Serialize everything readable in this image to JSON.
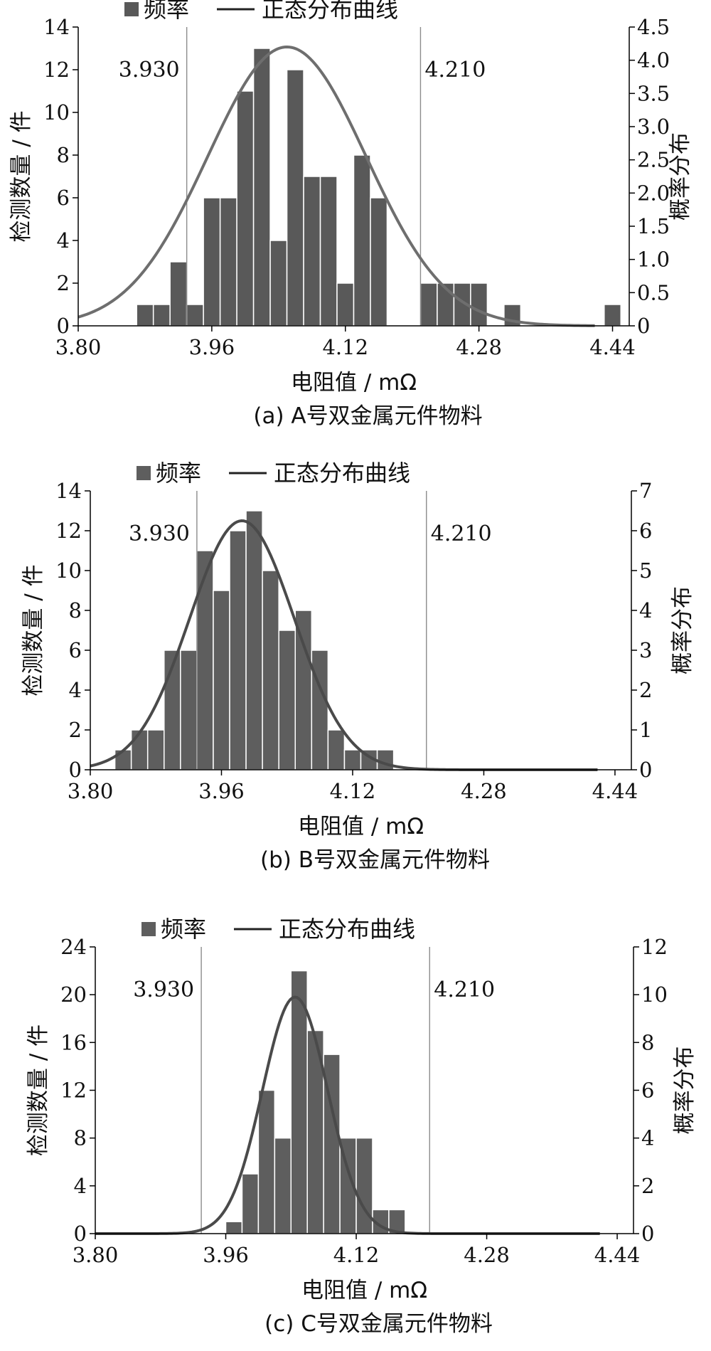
{
  "legend": {
    "bar_label": "频率",
    "line_label": "正态分布曲线"
  },
  "chart_data": [
    {
      "type": "bar",
      "caption": "(a)  A号双金属元件物料",
      "xlabel": "电阻值 / mΩ",
      "ylabel_left": "检测数量 / 件",
      "ylabel_right": "概率分布",
      "xlim": [
        3.8,
        4.46
      ],
      "x_ticks": [
        "3.80",
        "3.96",
        "4.12",
        "4.28",
        "4.44"
      ],
      "ylim_left": [
        0,
        14
      ],
      "y_ticks_left": [
        "0",
        "2",
        "4",
        "6",
        "8",
        "10",
        "12",
        "14"
      ],
      "ylim_right": [
        0,
        4.5
      ],
      "y_ticks_right": [
        "0",
        "0.5",
        "1.0",
        "1.5",
        "2.0",
        "2.5",
        "3.0",
        "3.5",
        "4.0",
        "4.5"
      ],
      "spec_lines": [
        {
          "x": 3.93,
          "label": "3.930"
        },
        {
          "x": 4.21,
          "label": "4.210"
        }
      ],
      "bin_width": 0.02,
      "bin_starts": [
        3.87,
        3.89,
        3.91,
        3.93,
        3.95,
        3.97,
        3.99,
        4.01,
        4.03,
        4.05,
        4.07,
        4.09,
        4.11,
        4.13,
        4.15,
        4.17,
        4.19,
        4.21,
        4.23,
        4.25,
        4.27,
        4.29,
        4.31,
        4.33,
        4.35,
        4.37,
        4.39,
        4.41,
        4.43
      ],
      "counts": [
        1,
        1,
        3,
        1,
        6,
        6,
        11,
        13,
        4,
        12,
        7,
        7,
        2,
        8,
        6,
        0,
        0,
        2,
        2,
        2,
        2,
        0,
        1,
        0,
        0,
        0,
        0,
        0,
        1
      ],
      "series": [
        {
          "name": "频率",
          "kind": "bar"
        },
        {
          "name": "正态分布曲线",
          "kind": "line",
          "mean": 4.05,
          "sd": 0.095,
          "peak": 4.2
        }
      ],
      "colors": {
        "bar": "#595959",
        "curve": "#6e6e6e",
        "spec": "#8c8c8c"
      }
    },
    {
      "type": "bar",
      "caption": "(b)  B号双金属元件物料",
      "xlabel": "电阻值 / mΩ",
      "ylabel_left": "检测数量 / 件",
      "ylabel_right": "概率分布",
      "xlim": [
        3.8,
        4.46
      ],
      "x_ticks": [
        "3.80",
        "3.96",
        "4.12",
        "4.28",
        "4.44"
      ],
      "ylim_left": [
        0,
        14
      ],
      "y_ticks_left": [
        "0",
        "2",
        "4",
        "6",
        "8",
        "10",
        "12",
        "14"
      ],
      "ylim_right": [
        0,
        7
      ],
      "y_ticks_right": [
        "0",
        "1",
        "2",
        "3",
        "4",
        "5",
        "6",
        "7"
      ],
      "spec_lines": [
        {
          "x": 3.93,
          "label": "3.930"
        },
        {
          "x": 4.21,
          "label": "4.210"
        }
      ],
      "bin_width": 0.02,
      "bin_starts": [
        3.83,
        3.85,
        3.87,
        3.89,
        3.91,
        3.93,
        3.95,
        3.97,
        3.99,
        4.01,
        4.03,
        4.05,
        4.07,
        4.09,
        4.11,
        4.13,
        4.15
      ],
      "counts": [
        1,
        2,
        2,
        6,
        6,
        11,
        9,
        12,
        13,
        10,
        7,
        8,
        6,
        2,
        1,
        1,
        1
      ],
      "series": [
        {
          "name": "频率",
          "kind": "bar"
        },
        {
          "name": "正态分布曲线",
          "kind": "line",
          "mean": 3.985,
          "sd": 0.064,
          "peak": 6.25
        }
      ],
      "colors": {
        "bar": "#5e5e5e",
        "curve": "#4a4a4a",
        "spec": "#8c8c8c"
      }
    },
    {
      "type": "bar",
      "caption": "(c)  C号双金属元件物料",
      "xlabel": "电阻值 / mΩ",
      "ylabel_left": "检测数量 / 件",
      "ylabel_right": "概率分布",
      "xlim": [
        3.8,
        4.46
      ],
      "x_ticks": [
        "3.80",
        "3.96",
        "4.12",
        "4.28",
        "4.44"
      ],
      "ylim_left": [
        0,
        24
      ],
      "y_ticks_left": [
        "0",
        "4",
        "8",
        "12",
        "16",
        "20",
        "24"
      ],
      "ylim_right": [
        0,
        12
      ],
      "y_ticks_right": [
        "0",
        "2",
        "4",
        "6",
        "8",
        "10",
        "12"
      ],
      "spec_lines": [
        {
          "x": 3.93,
          "label": "3.930"
        },
        {
          "x": 4.21,
          "label": "4.210"
        }
      ],
      "bin_width": 0.02,
      "bin_starts": [
        3.96,
        3.98,
        4.0,
        4.02,
        4.04,
        4.06,
        4.08,
        4.1,
        4.12,
        4.14,
        4.16
      ],
      "counts": [
        1,
        5,
        12,
        8,
        22,
        17,
        15,
        8,
        8,
        2,
        2
      ],
      "series": [
        {
          "name": "频率",
          "kind": "bar"
        },
        {
          "name": "正态分布曲线",
          "kind": "line",
          "mean": 4.045,
          "sd": 0.04,
          "peak": 9.9
        }
      ],
      "colors": {
        "bar": "#5e5e5e",
        "curve": "#4a4a4a",
        "spec": "#8c8c8c"
      }
    }
  ]
}
